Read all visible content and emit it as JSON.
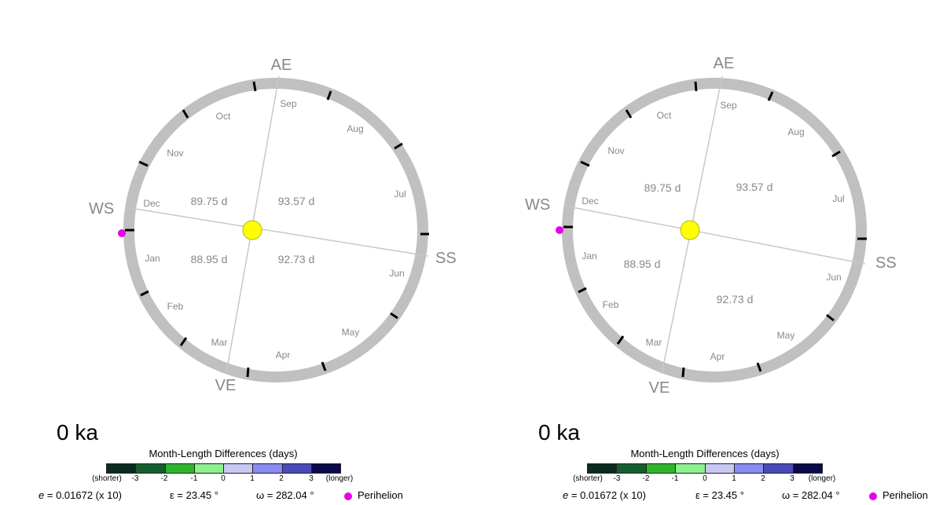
{
  "panels": [
    {
      "age": "0 ka",
      "seasons": {
        "AE": "AE",
        "SS": "SS",
        "VE": "VE",
        "WS": "WS"
      },
      "season_lengths": [
        "89.75 d",
        "93.57 d",
        "88.95 d",
        "92.73 d"
      ],
      "months": [
        "Sep",
        "Aug",
        "Jul",
        "Jun",
        "May",
        "Apr",
        "Mar",
        "Feb",
        "Jan",
        "Dec",
        "Nov",
        "Oct"
      ]
    },
    {
      "age": "0 ka",
      "seasons": {
        "AE": "AE",
        "SS": "SS",
        "VE": "VE",
        "WS": "WS"
      },
      "season_lengths": [
        "89.75 d",
        "93.57 d",
        "88.95 d",
        "92.73 d"
      ],
      "months": [
        "Sep",
        "Aug",
        "Jul",
        "Jun",
        "May",
        "Apr",
        "Mar",
        "Feb",
        "Jan",
        "Dec",
        "Nov",
        "Oct"
      ]
    }
  ],
  "legend": {
    "title": "Month-Length Differences (days)",
    "shorter": "(shorter)",
    "longer": "(longer)",
    "ticks": [
      "-3",
      "-2",
      "-1",
      "0",
      "1",
      "2",
      "3"
    ],
    "colors": [
      "#0a2a22",
      "#155e30",
      "#2fb52f",
      "#8ef08e",
      "#c8c8f5",
      "#8a8af0",
      "#4a4ab8",
      "#0a0a4a"
    ]
  },
  "params": {
    "e": "= 0.01672 (x 10)",
    "e_symbol": "e",
    "epsilon": "ε = 23.45 °",
    "omega": "ω = 282.04 °",
    "perihelion": "Perihelion"
  },
  "colors": {
    "orbit": "#c0c0c0",
    "axis": "#c8c8c8",
    "sun": "#ffff00",
    "sun_stroke": "#b8b800",
    "label": "#888888",
    "perihelion": "#e600e6"
  }
}
